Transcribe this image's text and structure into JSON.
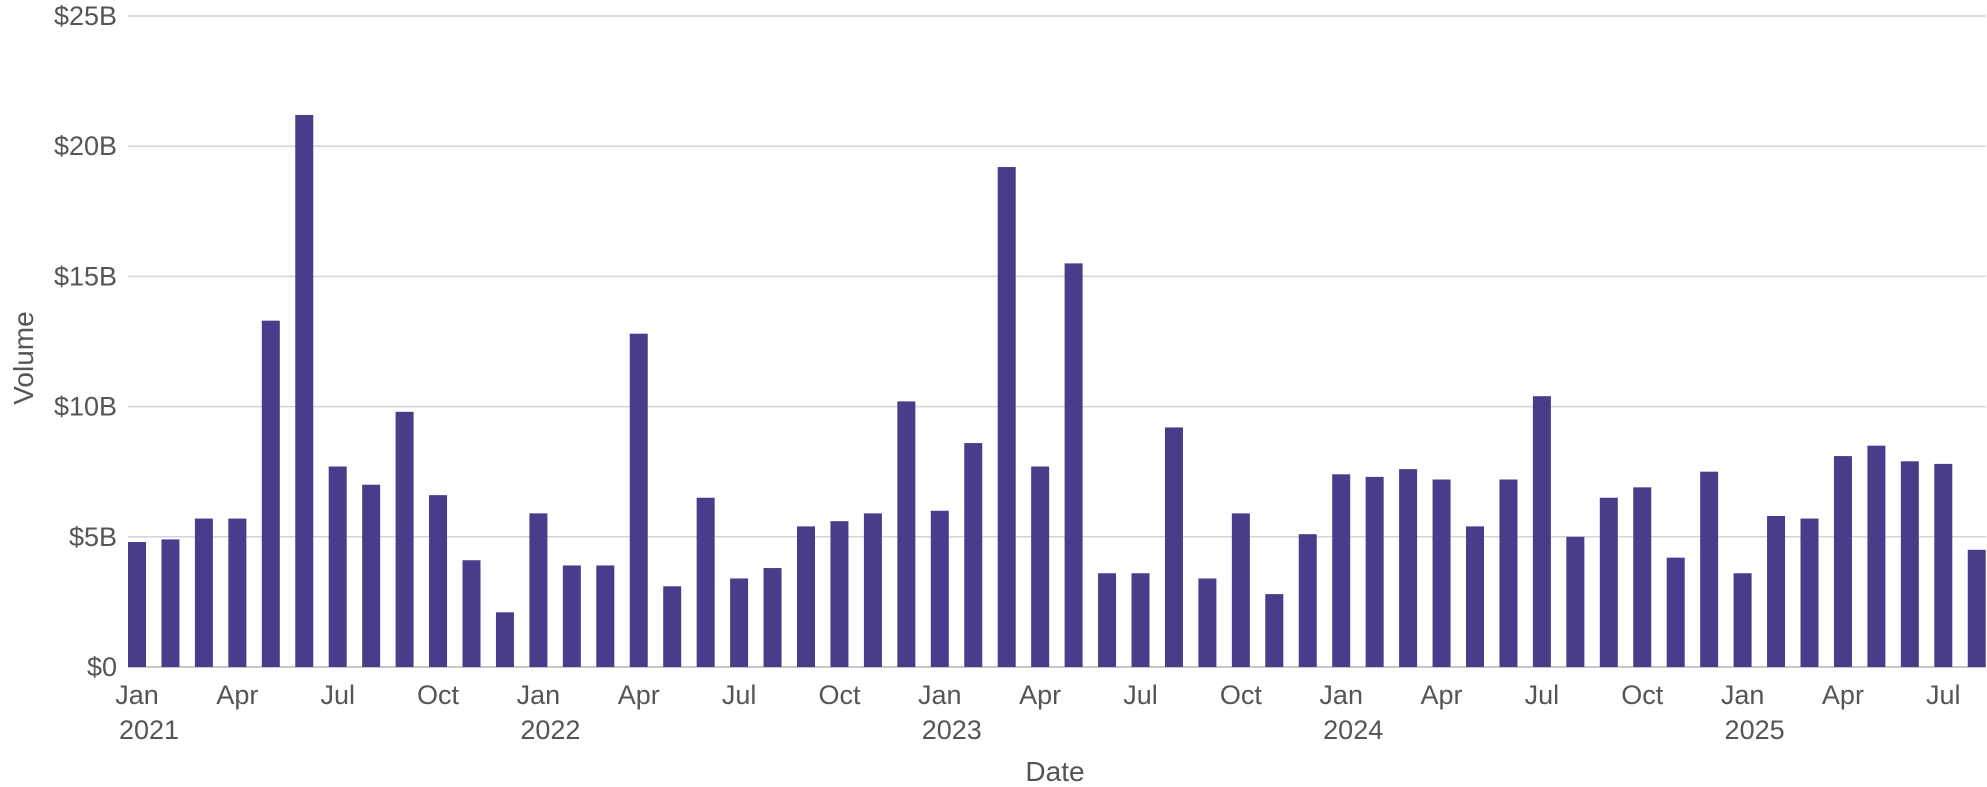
{
  "chart_data": {
    "type": "bar",
    "xlabel": "Date",
    "ylabel": "Volume",
    "ylim": [
      0,
      25
    ],
    "y_unit": "B",
    "y_ticks": [
      {
        "value": 0,
        "label": "$0"
      },
      {
        "value": 5,
        "label": "$5B"
      },
      {
        "value": 10,
        "label": "$10B"
      },
      {
        "value": 15,
        "label": "$15B"
      },
      {
        "value": 20,
        "label": "$20B"
      },
      {
        "value": 25,
        "label": "$25B"
      }
    ],
    "x_ticks": [
      {
        "date": "2021-01",
        "label": "Jan",
        "year": "2021"
      },
      {
        "date": "2021-04",
        "label": "Apr",
        "year": ""
      },
      {
        "date": "2021-07",
        "label": "Jul",
        "year": ""
      },
      {
        "date": "2021-10",
        "label": "Oct",
        "year": ""
      },
      {
        "date": "2022-01",
        "label": "Jan",
        "year": "2022"
      },
      {
        "date": "2022-04",
        "label": "Apr",
        "year": ""
      },
      {
        "date": "2022-07",
        "label": "Jul",
        "year": ""
      },
      {
        "date": "2022-10",
        "label": "Oct",
        "year": ""
      },
      {
        "date": "2023-01",
        "label": "Jan",
        "year": "2023"
      },
      {
        "date": "2023-04",
        "label": "Apr",
        "year": ""
      },
      {
        "date": "2023-07",
        "label": "Jul",
        "year": ""
      },
      {
        "date": "2023-10",
        "label": "Oct",
        "year": ""
      },
      {
        "date": "2024-01",
        "label": "Jan",
        "year": "2024"
      },
      {
        "date": "2024-04",
        "label": "Apr",
        "year": ""
      },
      {
        "date": "2024-07",
        "label": "Jul",
        "year": ""
      },
      {
        "date": "2024-10",
        "label": "Oct",
        "year": ""
      },
      {
        "date": "2025-01",
        "label": "Jan",
        "year": "2025"
      },
      {
        "date": "2025-04",
        "label": "Apr",
        "year": ""
      },
      {
        "date": "2025-07",
        "label": "Jul",
        "year": ""
      }
    ],
    "bar_color": "#483D8B",
    "grid": true,
    "legend": "none",
    "x": [
      "2021-01",
      "2021-02",
      "2021-03",
      "2021-04",
      "2021-05",
      "2021-06",
      "2021-07",
      "2021-08",
      "2021-09",
      "2021-10",
      "2021-11",
      "2021-12",
      "2022-01",
      "2022-02",
      "2022-03",
      "2022-04",
      "2022-05",
      "2022-06",
      "2022-07",
      "2022-08",
      "2022-09",
      "2022-10",
      "2022-11",
      "2022-12",
      "2023-01",
      "2023-02",
      "2023-03",
      "2023-04",
      "2023-05",
      "2023-06",
      "2023-07",
      "2023-08",
      "2023-09",
      "2023-10",
      "2023-11",
      "2023-12",
      "2024-01",
      "2024-02",
      "2024-03",
      "2024-04",
      "2024-05",
      "2024-06",
      "2024-07",
      "2024-08",
      "2024-09",
      "2024-10",
      "2024-11",
      "2024-12",
      "2025-01",
      "2025-02",
      "2025-03",
      "2025-04",
      "2025-05",
      "2025-06",
      "2025-07",
      "2025-08"
    ],
    "values": [
      4.8,
      4.9,
      5.7,
      5.7,
      13.3,
      21.2,
      7.7,
      7.0,
      9.8,
      6.6,
      4.1,
      2.1,
      5.9,
      3.9,
      3.9,
      12.8,
      3.1,
      6.5,
      3.4,
      3.8,
      5.4,
      5.6,
      5.9,
      10.2,
      6.0,
      8.6,
      19.2,
      7.7,
      15.5,
      3.6,
      3.6,
      9.2,
      3.4,
      5.9,
      2.8,
      5.1,
      7.4,
      7.3,
      7.6,
      7.2,
      5.4,
      7.2,
      10.4,
      5.0,
      6.5,
      6.9,
      4.2,
      7.5,
      3.6,
      5.8,
      5.7,
      8.1,
      8.5,
      7.9,
      7.8,
      4.5
    ]
  }
}
